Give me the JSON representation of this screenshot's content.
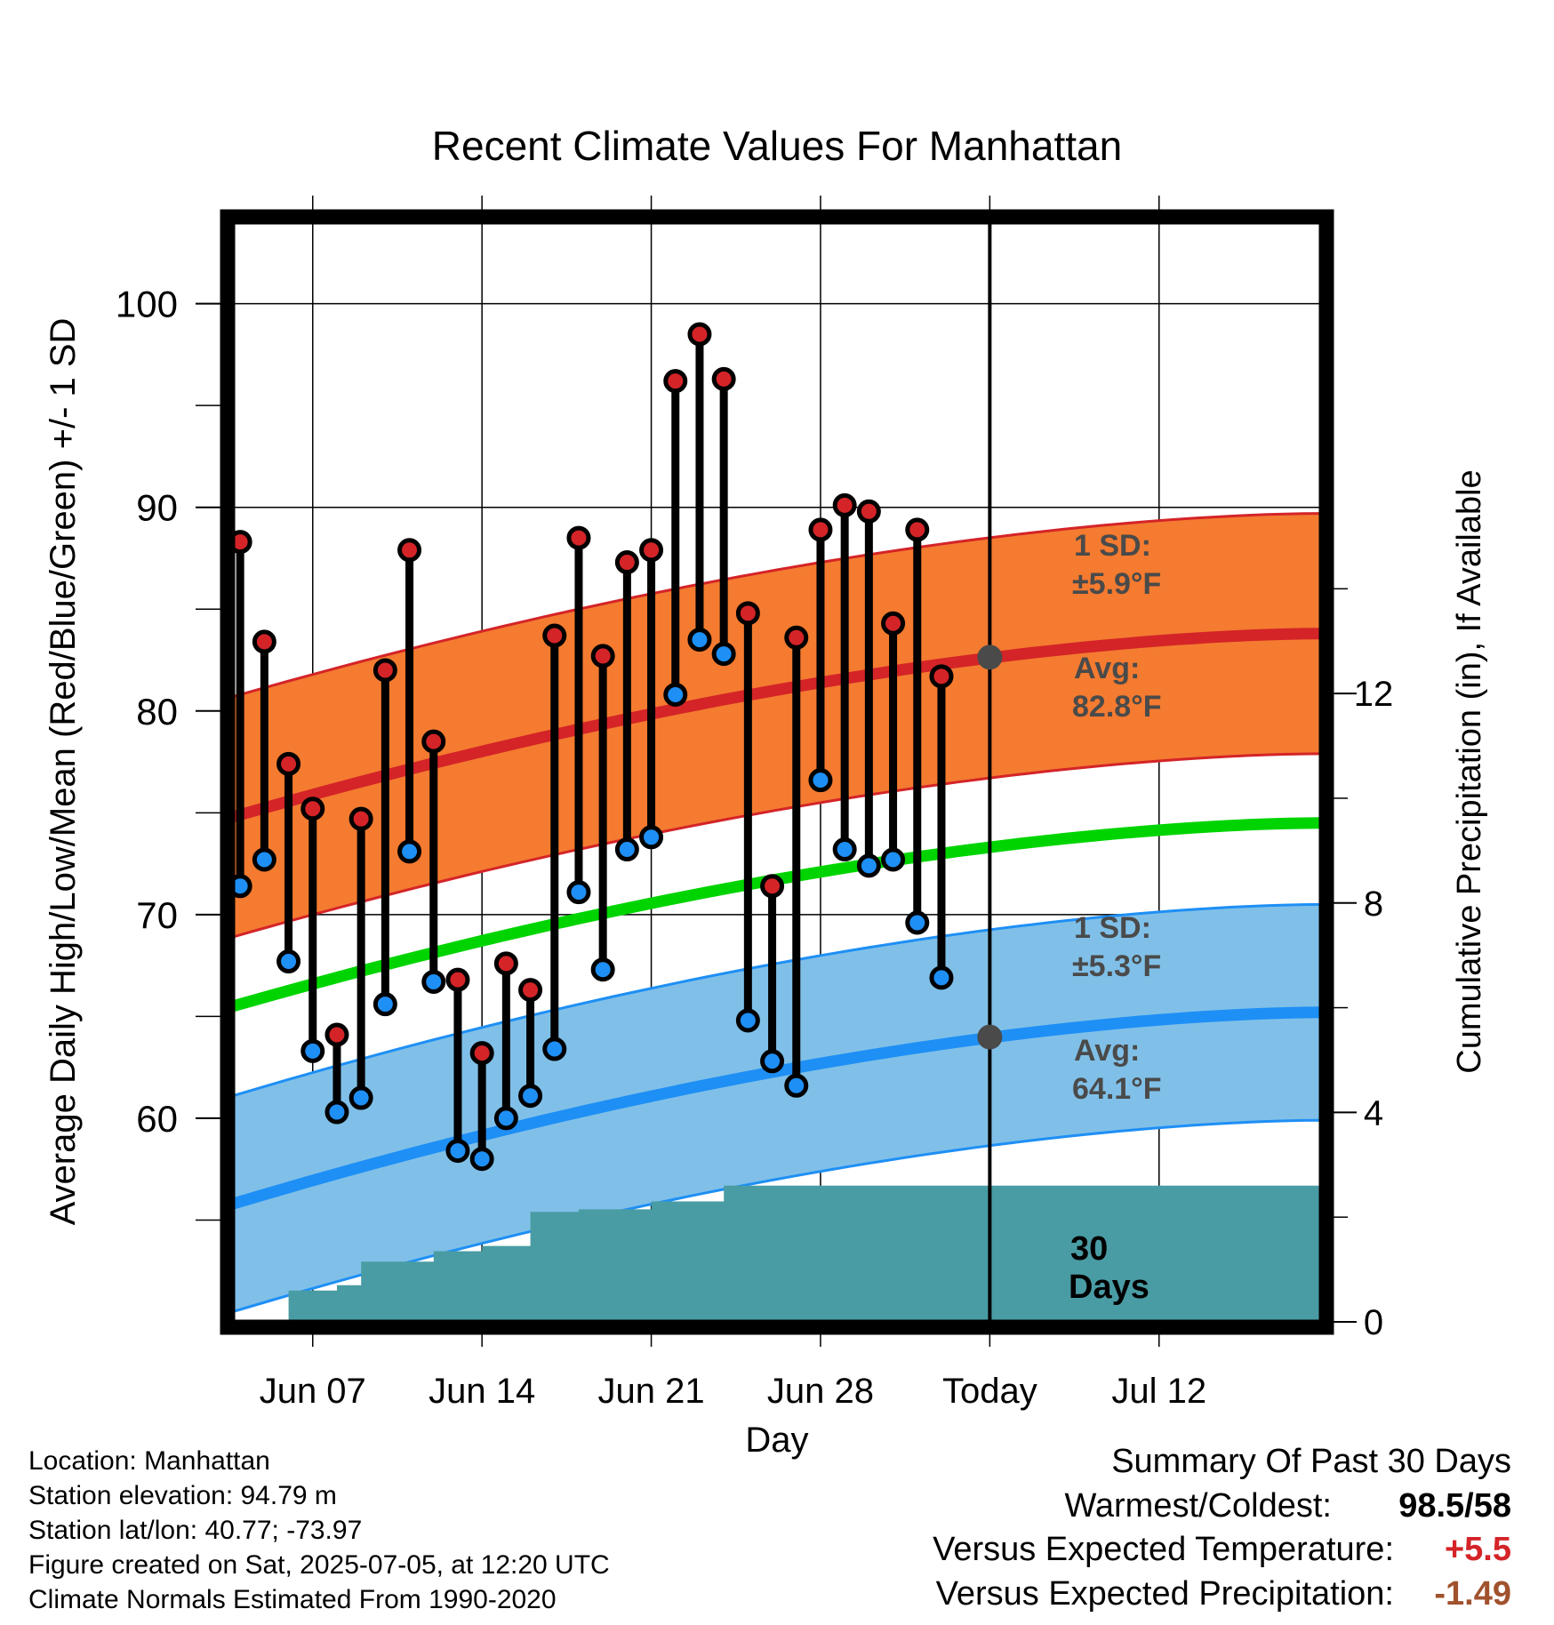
{
  "chart_data": {
    "type": "line",
    "title": "Recent Climate Values For Manhattan",
    "xlabel": "Day",
    "ylabel": "Average Daily High/Low/Mean (Red/Blue/Green) +/- 1 SD",
    "y2label": "Cumulative Precipitation (in), If Available",
    "ylim": [
      50,
      104
    ],
    "y2lim": [
      0,
      21
    ],
    "xlim": [
      -0.3,
      44.7
    ],
    "x_ticks": [
      {
        "day": 3,
        "label": "Jun 07"
      },
      {
        "day": 10,
        "label": "Jun 14"
      },
      {
        "day": 17,
        "label": "Jun 21"
      },
      {
        "day": 24,
        "label": "Jun 28"
      },
      {
        "day": 31,
        "label": "Today"
      },
      {
        "day": 38,
        "label": "Jul 12"
      }
    ],
    "y_ticks": [
      60,
      70,
      80,
      90,
      100
    ],
    "y2_ticks": [
      0,
      4,
      8,
      12
    ],
    "grid": true,
    "today_day": 31,
    "observed": {
      "days": [
        0,
        1,
        2,
        3,
        4,
        5,
        6,
        7,
        8,
        9,
        10,
        11,
        12,
        13,
        14,
        15,
        16,
        17,
        18,
        19,
        20,
        21,
        22,
        23,
        24,
        25,
        26,
        27,
        28,
        29
      ],
      "high": [
        88.3,
        83.4,
        77.4,
        75.2,
        64.1,
        74.7,
        82.0,
        87.9,
        78.5,
        66.8,
        63.2,
        67.6,
        66.3,
        83.7,
        88.5,
        82.7,
        87.3,
        87.9,
        96.2,
        98.5,
        96.3,
        84.8,
        71.4,
        83.6,
        88.9,
        90.1,
        89.8,
        84.3,
        88.9,
        81.7
      ],
      "low": [
        71.4,
        72.7,
        67.7,
        63.3,
        60.3,
        61.0,
        65.6,
        73.1,
        66.7,
        58.4,
        58.0,
        60.0,
        61.1,
        63.4,
        71.1,
        67.3,
        73.2,
        73.8,
        80.8,
        83.5,
        82.8,
        64.8,
        62.8,
        61.6,
        76.6,
        73.2,
        72.4,
        72.7,
        69.6,
        66.9
      ]
    },
    "normals": {
      "high_avg": {
        "start": 74.8,
        "end": 83.8
      },
      "high_sd": 5.9,
      "mean_avg": {
        "start": 65.5,
        "end": 74.5
      },
      "low_avg": {
        "start": 55.8,
        "end": 65.2
      },
      "low_sd": 5.3
    },
    "precip_cumulative": {
      "days": [
        1,
        2,
        3,
        4,
        5,
        6,
        7,
        8,
        9,
        10,
        11,
        12,
        13,
        14,
        15,
        16,
        17,
        18,
        19,
        20,
        21,
        22,
        23,
        24,
        25,
        26,
        27,
        28,
        29,
        30,
        31,
        32,
        33,
        34,
        35,
        36,
        37,
        38,
        39,
        40,
        41,
        42,
        43,
        44,
        45
      ],
      "values": [
        0.0,
        0.6,
        0.6,
        0.7,
        1.15,
        1.15,
        1.15,
        1.35,
        1.35,
        1.45,
        1.45,
        2.1,
        2.1,
        2.15,
        2.15,
        2.15,
        2.3,
        2.3,
        2.3,
        2.6,
        2.6,
        2.6,
        2.6,
        2.6,
        2.6,
        2.6,
        2.6,
        2.6,
        2.6,
        2.6,
        2.6,
        2.6,
        2.6,
        2.6,
        2.6,
        2.6,
        2.6,
        2.6,
        2.6,
        2.6,
        2.6,
        2.6,
        2.6,
        2.6,
        2.6
      ]
    },
    "annotations": {
      "high_sd_label": "1 SD:",
      "high_sd_value": "±5.9°F",
      "high_avg_label": "Avg:",
      "high_avg_value": "82.8°F",
      "low_sd_label": "1 SD:",
      "low_sd_value": "±5.3°F",
      "low_avg_label": "Avg:",
      "low_avg_value": "64.1°F",
      "days_label_1": "30",
      "days_label_2": "Days"
    },
    "colors": {
      "high_band": "#f47b30",
      "high_line": "#d42428",
      "mean_line": "#00d400",
      "low_band": "#80c0e8",
      "low_line": "#1e8ff5",
      "precip": "#4a9ca4",
      "high_point": "#d42428",
      "low_point": "#1e8ff5",
      "annotation_text": "#4a4a4a"
    }
  },
  "info": {
    "location": "Location: Manhattan",
    "elevation": "Station elevation: 94.79 m",
    "latlon": "Station lat/lon: 40.77; -73.97",
    "created": "Figure created on Sat, 2025-07-05, at 12:20 UTC",
    "normals": "Climate Normals Estimated From 1990-2020"
  },
  "summary": {
    "title": "Summary Of Past 30 Days",
    "warm_cold_label": "Warmest/Coldest:",
    "warm_value": "98.5",
    "cold_value": "/58",
    "temp_label": "Versus Expected Temperature:",
    "temp_value": "+5.5",
    "precip_label": "Versus Expected Precipitation:",
    "precip_value": "-1.49",
    "temp_color": "#d42428",
    "precip_color": "#a0522d"
  }
}
